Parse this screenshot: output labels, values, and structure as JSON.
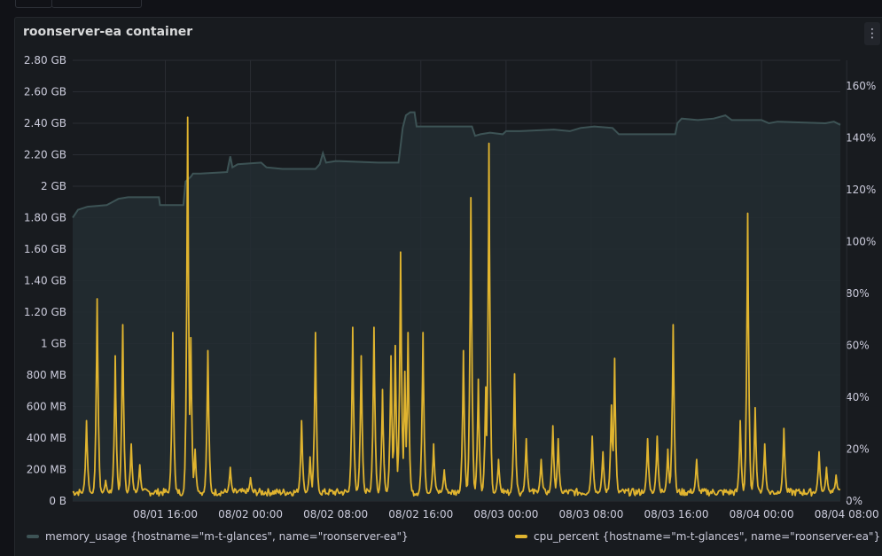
{
  "panel": {
    "title": "roonserver-ea container",
    "menu_icon": "⋮"
  },
  "chart_data": {
    "type": "area",
    "title": "roonserver-ea container",
    "x_ticks": [
      "08/01 16:00",
      "08/02 00:00",
      "08/02 08:00",
      "08/02 16:00",
      "08/03 00:00",
      "08/03 08:00",
      "08/03 16:00",
      "08/04 00:00",
      "08/04 08:00"
    ],
    "x_range_hours": [
      -8.7,
      63.4
    ],
    "left_axis": {
      "series": "memory_usage",
      "unit": "MB",
      "ylim": [
        0,
        2800
      ],
      "ticks": [
        "2.80 GB",
        "2.60 GB",
        "2.40 GB",
        "2.20 GB",
        "2 GB",
        "1.80 GB",
        "1.60 GB",
        "1.40 GB",
        "1.20 GB",
        "1 GB",
        "800 MB",
        "600 MB",
        "400 MB",
        "200 MB",
        "0 B"
      ]
    },
    "right_axis": {
      "series": "cpu_percent",
      "unit": "%",
      "ylim": [
        0,
        170
      ],
      "ticks": [
        "160%",
        "140%",
        "120%",
        "100%",
        "80%",
        "60%",
        "40%",
        "20%",
        "0%"
      ]
    },
    "series": [
      {
        "name": "memory_usage",
        "color": "#3d5355",
        "fill": "#232d32",
        "points": [
          [
            -8.7,
            1800
          ],
          [
            -8.2,
            1850
          ],
          [
            -7.3,
            1870
          ],
          [
            -5.5,
            1880
          ],
          [
            -4.4,
            1920
          ],
          [
            -3.5,
            1930
          ],
          [
            -0.6,
            1930
          ],
          [
            -0.5,
            1880
          ],
          [
            1.7,
            1880
          ],
          [
            1.9,
            2030
          ],
          [
            2.4,
            2060
          ],
          [
            2.6,
            2080
          ],
          [
            3.3,
            2080
          ],
          [
            5.8,
            2090
          ],
          [
            6.1,
            2190
          ],
          [
            6.3,
            2120
          ],
          [
            6.8,
            2140
          ],
          [
            9.0,
            2150
          ],
          [
            9.5,
            2120
          ],
          [
            11.0,
            2110
          ],
          [
            14.1,
            2110
          ],
          [
            14.5,
            2140
          ],
          [
            14.8,
            2210
          ],
          [
            15.1,
            2150
          ],
          [
            16.0,
            2160
          ],
          [
            20.0,
            2150
          ],
          [
            21.9,
            2150
          ],
          [
            22.0,
            2200
          ],
          [
            22.3,
            2370
          ],
          [
            22.6,
            2450
          ],
          [
            23.0,
            2470
          ],
          [
            23.4,
            2470
          ],
          [
            23.6,
            2380
          ],
          [
            24.5,
            2380
          ],
          [
            28.8,
            2380
          ],
          [
            29.1,
            2320
          ],
          [
            29.6,
            2330
          ],
          [
            30.5,
            2340
          ],
          [
            31.7,
            2330
          ],
          [
            32.0,
            2350
          ],
          [
            33.3,
            2350
          ],
          [
            36.5,
            2360
          ],
          [
            38.0,
            2350
          ],
          [
            39.0,
            2370
          ],
          [
            40.3,
            2380
          ],
          [
            42.0,
            2370
          ],
          [
            42.6,
            2330
          ],
          [
            43.8,
            2330
          ],
          [
            46.6,
            2330
          ],
          [
            47.9,
            2330
          ],
          [
            48.1,
            2400
          ],
          [
            48.5,
            2430
          ],
          [
            50.0,
            2420
          ],
          [
            51.5,
            2430
          ],
          [
            52.6,
            2450
          ],
          [
            53.2,
            2420
          ],
          [
            56.0,
            2420
          ],
          [
            56.7,
            2400
          ],
          [
            57.5,
            2410
          ],
          [
            62.0,
            2400
          ],
          [
            62.8,
            2410
          ],
          [
            63.4,
            2390
          ]
        ]
      },
      {
        "name": "cpu_percent",
        "color": "#e0b42f",
        "baseline_pct": 3,
        "spikes_pct": [
          [
            -7.4,
            31
          ],
          [
            -6.4,
            78
          ],
          [
            -5.6,
            8
          ],
          [
            -4.7,
            56
          ],
          [
            -4.0,
            68
          ],
          [
            -3.2,
            22
          ],
          [
            -2.4,
            14
          ],
          [
            4.0,
            58
          ],
          [
            0.7,
            65
          ],
          [
            2.1,
            148
          ],
          [
            2.4,
            63
          ],
          [
            2.8,
            20
          ],
          [
            6.1,
            13
          ],
          [
            8.0,
            9
          ],
          [
            12.8,
            31
          ],
          [
            13.6,
            17
          ],
          [
            14.1,
            65
          ],
          [
            17.6,
            67
          ],
          [
            18.4,
            56
          ],
          [
            19.6,
            67
          ],
          [
            20.4,
            43
          ],
          [
            21.2,
            56
          ],
          [
            21.6,
            60
          ],
          [
            22.1,
            96
          ],
          [
            22.5,
            50
          ],
          [
            22.8,
            65
          ],
          [
            24.2,
            65
          ],
          [
            25.2,
            22
          ],
          [
            26.2,
            12
          ],
          [
            28.0,
            58
          ],
          [
            28.7,
            117
          ],
          [
            29.4,
            47
          ],
          [
            30.1,
            44
          ],
          [
            30.4,
            138
          ],
          [
            31.3,
            16
          ],
          [
            32.8,
            49
          ],
          [
            33.9,
            24
          ],
          [
            35.3,
            16
          ],
          [
            36.4,
            29
          ],
          [
            36.9,
            24
          ],
          [
            40.1,
            25
          ],
          [
            41.1,
            19
          ],
          [
            41.9,
            37
          ],
          [
            42.2,
            55
          ],
          [
            45.3,
            24
          ],
          [
            46.2,
            25
          ],
          [
            47.2,
            20
          ],
          [
            47.7,
            68
          ],
          [
            49.9,
            16
          ],
          [
            54.0,
            31
          ],
          [
            54.7,
            111
          ],
          [
            55.4,
            36
          ],
          [
            56.3,
            22
          ],
          [
            58.1,
            28
          ],
          [
            61.4,
            19
          ],
          [
            62.1,
            13
          ],
          [
            63.0,
            10
          ]
        ]
      }
    ],
    "legend": [
      {
        "label": "memory_usage {hostname=\"m-t-glances\", name=\"roonserver-ea\"}",
        "color": "#3d5355"
      },
      {
        "label": "cpu_percent {hostname=\"m-t-glances\", name=\"roonserver-ea\"}",
        "color": "#e0b42f"
      }
    ]
  }
}
